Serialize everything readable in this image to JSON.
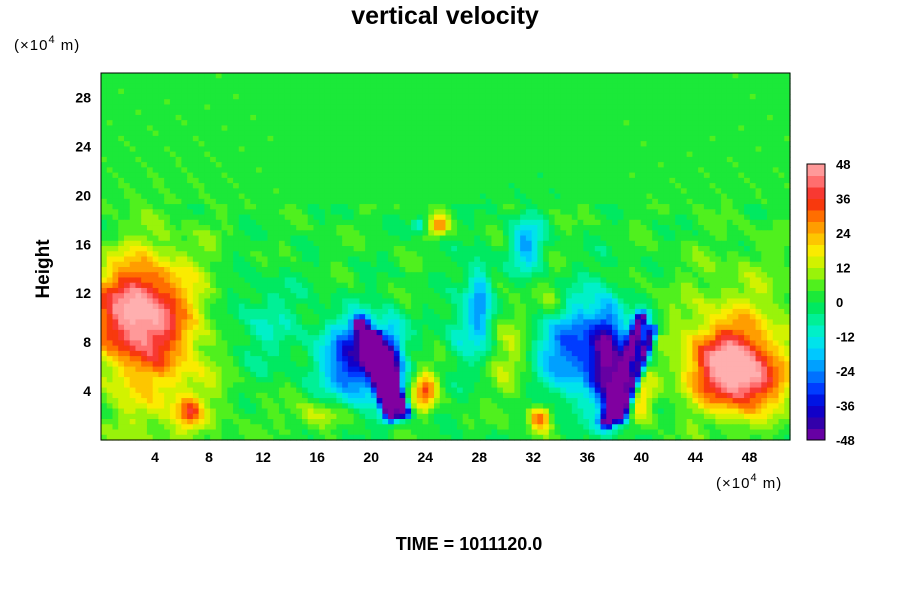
{
  "chart_data": {
    "type": "heatmap",
    "title": "vertical velocity",
    "ylabel": "Height",
    "x_unit_text": "(×10",
    "x_unit_exp": "4",
    "x_unit_suffix": " m)",
    "y_unit_text": "(×10",
    "y_unit_exp": "4",
    "y_unit_suffix": " m)",
    "footer": "TIME = 1011120.0",
    "xlim": [
      0,
      51
    ],
    "ylim": [
      0,
      30
    ],
    "x_ticks": [
      4,
      8,
      12,
      16,
      20,
      24,
      28,
      32,
      36,
      40,
      44,
      48
    ],
    "y_ticks": [
      4,
      8,
      12,
      16,
      20,
      24,
      28
    ],
    "colorbar": {
      "vmin": -48,
      "vmax": 48,
      "step": 4,
      "ticks": [
        48,
        36,
        24,
        12,
        0,
        -12,
        -24,
        -36,
        -48
      ]
    },
    "background_value": 2,
    "features": [
      {
        "x": 2.5,
        "y": 10.5,
        "sx": 3.2,
        "sy": 4.0,
        "amp": 38
      },
      {
        "x": 4.5,
        "y": 7.5,
        "sx": 4.5,
        "sy": 7.5,
        "amp": 18
      },
      {
        "x": 6.5,
        "y": 2.2,
        "sx": 1.0,
        "sy": 1.2,
        "amp": 22
      },
      {
        "x": 46.5,
        "y": 6.0,
        "sx": 3.0,
        "sy": 3.2,
        "amp": 42
      },
      {
        "x": 48.5,
        "y": 4.5,
        "sx": 2.5,
        "sy": 2.5,
        "amp": 16
      },
      {
        "x": 47.5,
        "y": 9.0,
        "sx": 5.0,
        "sy": 6.0,
        "amp": 10
      },
      {
        "x": 11.5,
        "y": 9.5,
        "sx": 3.5,
        "sy": 4.0,
        "amp": -10
      },
      {
        "x": 19.0,
        "y": 6.5,
        "sx": 2.5,
        "sy": 3.2,
        "amp": -42
      },
      {
        "x": 21.5,
        "y": 6.0,
        "sx": 0.8,
        "sy": 3.5,
        "amp": -30
      },
      {
        "x": 24.0,
        "y": 4.0,
        "sx": 0.8,
        "sy": 1.5,
        "amp": 30
      },
      {
        "x": 25.0,
        "y": 17.5,
        "sx": 0.7,
        "sy": 0.8,
        "amp": 26
      },
      {
        "x": 23.5,
        "y": 17.5,
        "sx": 0.5,
        "sy": 0.6,
        "amp": -18
      },
      {
        "x": 28.0,
        "y": 11.0,
        "sx": 0.9,
        "sy": 3.5,
        "amp": -26
      },
      {
        "x": 30.5,
        "y": 7.0,
        "sx": 1.6,
        "sy": 4.0,
        "amp": 10
      },
      {
        "x": 31.5,
        "y": 16.0,
        "sx": 1.2,
        "sy": 2.2,
        "amp": -22
      },
      {
        "x": 32.5,
        "y": 1.8,
        "sx": 0.8,
        "sy": 1.0,
        "amp": 30
      },
      {
        "x": 35.0,
        "y": 7.5,
        "sx": 2.8,
        "sy": 4.0,
        "amp": -32
      },
      {
        "x": 37.5,
        "y": 6.5,
        "sx": 1.2,
        "sy": 4.5,
        "amp": -40
      },
      {
        "x": 40.0,
        "y": 3.5,
        "sx": 1.0,
        "sy": 1.8,
        "amp": 18
      },
      {
        "x": 26.5,
        "y": 9.0,
        "sx": 1.0,
        "sy": 3.0,
        "amp": -12
      },
      {
        "x": 16.0,
        "y": 2.0,
        "sx": 2.0,
        "sy": 1.2,
        "amp": 12
      },
      {
        "x": 33.5,
        "y": 11.0,
        "sx": 1.2,
        "sy": 2.0,
        "amp": 12
      }
    ],
    "streaks": [
      {
        "x0": 21.5,
        "y0": 2.0,
        "x1": 19.2,
        "y1": 9.5,
        "w": 0.55,
        "amp": -50
      },
      {
        "x0": 22.5,
        "y0": 2.2,
        "x1": 20.3,
        "y1": 8.5,
        "w": 0.45,
        "amp": -48
      },
      {
        "x0": 37.5,
        "y0": 1.5,
        "x1": 40.0,
        "y1": 10.0,
        "w": 0.55,
        "amp": -50
      },
      {
        "x0": 38.5,
        "y0": 1.8,
        "x1": 40.8,
        "y1": 9.0,
        "w": 0.45,
        "amp": -48
      }
    ]
  }
}
